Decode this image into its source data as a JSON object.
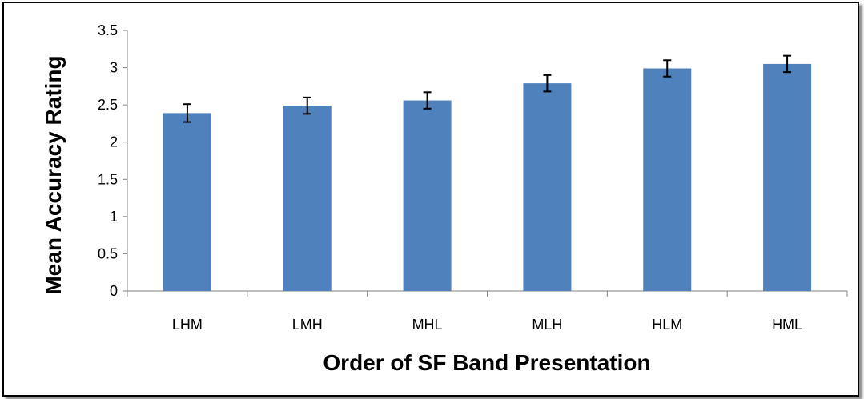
{
  "chart_data": {
    "type": "bar",
    "categories": [
      "LHM",
      "LMH",
      "MHL",
      "MLH",
      "HLM",
      "HML"
    ],
    "values": [
      2.39,
      2.49,
      2.56,
      2.79,
      2.99,
      3.05
    ],
    "errors": [
      0.12,
      0.11,
      0.11,
      0.11,
      0.11,
      0.11
    ],
    "xlabel": "Order of SF Band Presentation",
    "ylabel": "Mean Accuracy Rating",
    "ylim": [
      0,
      3.5
    ],
    "yticks": [
      "0",
      "0.5",
      "1",
      "1.5",
      "2",
      "2.5",
      "3",
      "3.5"
    ],
    "grid": false,
    "legend": "none",
    "colors": {
      "bar": "#4f81bd",
      "axis": "#808080",
      "errorbar": "#000000"
    }
  }
}
